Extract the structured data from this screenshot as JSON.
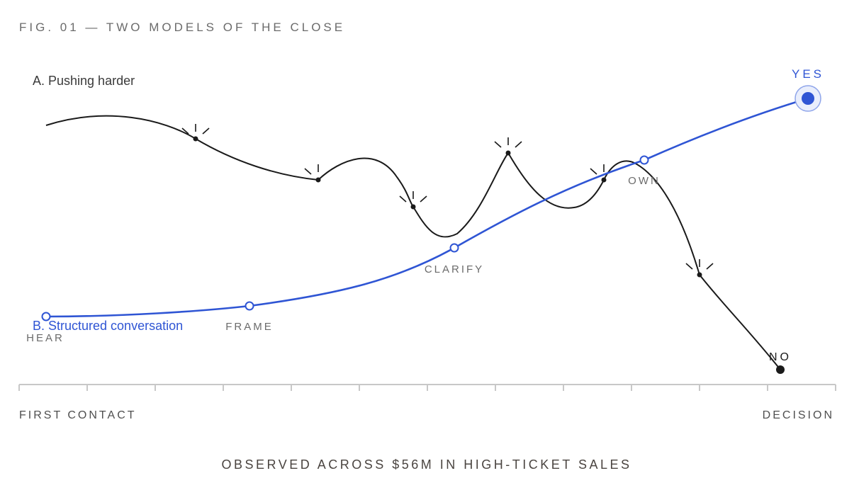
{
  "figure": {
    "title": "FIG. 01 — TWO MODELS OF THE CLOSE",
    "caption": "OBSERVED ACROSS $56M IN HIGH-TICKET SALES"
  },
  "axis": {
    "start_label": "FIRST CONTACT",
    "end_label": "DECISION"
  },
  "model_a": {
    "label": "A. Pushing harder",
    "outcome_label": "NO",
    "color": "#1a1a1a"
  },
  "model_b": {
    "label": "B. Structured conversation",
    "outcome_label": "YES",
    "color": "#2f55d4",
    "stages": [
      {
        "label": "HEAR"
      },
      {
        "label": "FRAME"
      },
      {
        "label": "CLARIFY"
      },
      {
        "label": "OWN"
      }
    ]
  },
  "colors": {
    "text_muted": "#6b6b6b",
    "caption": "#4a4440",
    "axis": "#c8c8c8",
    "path_a": "#1a1a1a",
    "path_b": "#2f55d4"
  }
}
